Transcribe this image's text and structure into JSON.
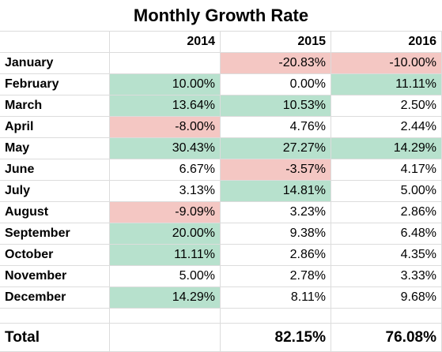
{
  "sheet": {
    "title": "Monthly Growth Rate",
    "years": [
      "2014",
      "2015",
      "2016"
    ],
    "colors": {
      "positive_fill": "#b7e1cd",
      "negative_fill": "#f4c7c3",
      "gridline": "#dcdcdc"
    },
    "rows": [
      {
        "month": "January",
        "values": [
          "",
          "-20.83%",
          "-10.00%"
        ],
        "fills": [
          "",
          "red",
          "red"
        ]
      },
      {
        "month": "February",
        "values": [
          "10.00%",
          "0.00%",
          "11.11%"
        ],
        "fills": [
          "green",
          "",
          "green"
        ]
      },
      {
        "month": "March",
        "values": [
          "13.64%",
          "10.53%",
          "2.50%"
        ],
        "fills": [
          "green",
          "green",
          ""
        ]
      },
      {
        "month": "April",
        "values": [
          "-8.00%",
          "4.76%",
          "2.44%"
        ],
        "fills": [
          "red",
          "",
          ""
        ]
      },
      {
        "month": "May",
        "values": [
          "30.43%",
          "27.27%",
          "14.29%"
        ],
        "fills": [
          "green",
          "green",
          "green"
        ]
      },
      {
        "month": "June",
        "values": [
          "6.67%",
          "-3.57%",
          "4.17%"
        ],
        "fills": [
          "",
          "red",
          ""
        ]
      },
      {
        "month": "July",
        "values": [
          "3.13%",
          "14.81%",
          "5.00%"
        ],
        "fills": [
          "",
          "green",
          ""
        ]
      },
      {
        "month": "August",
        "values": [
          "-9.09%",
          "3.23%",
          "2.86%"
        ],
        "fills": [
          "red",
          "",
          ""
        ]
      },
      {
        "month": "September",
        "values": [
          "20.00%",
          "9.38%",
          "6.48%"
        ],
        "fills": [
          "green",
          "",
          ""
        ]
      },
      {
        "month": "October",
        "values": [
          "11.11%",
          "2.86%",
          "4.35%"
        ],
        "fills": [
          "green",
          "",
          ""
        ]
      },
      {
        "month": "November",
        "values": [
          "5.00%",
          "2.78%",
          "3.33%"
        ],
        "fills": [
          "",
          "",
          ""
        ]
      },
      {
        "month": "December",
        "values": [
          "14.29%",
          "8.11%",
          "9.68%"
        ],
        "fills": [
          "green",
          "",
          ""
        ]
      }
    ],
    "total": {
      "label": "Total",
      "values": [
        "",
        "82.15%",
        "76.08%"
      ]
    }
  }
}
